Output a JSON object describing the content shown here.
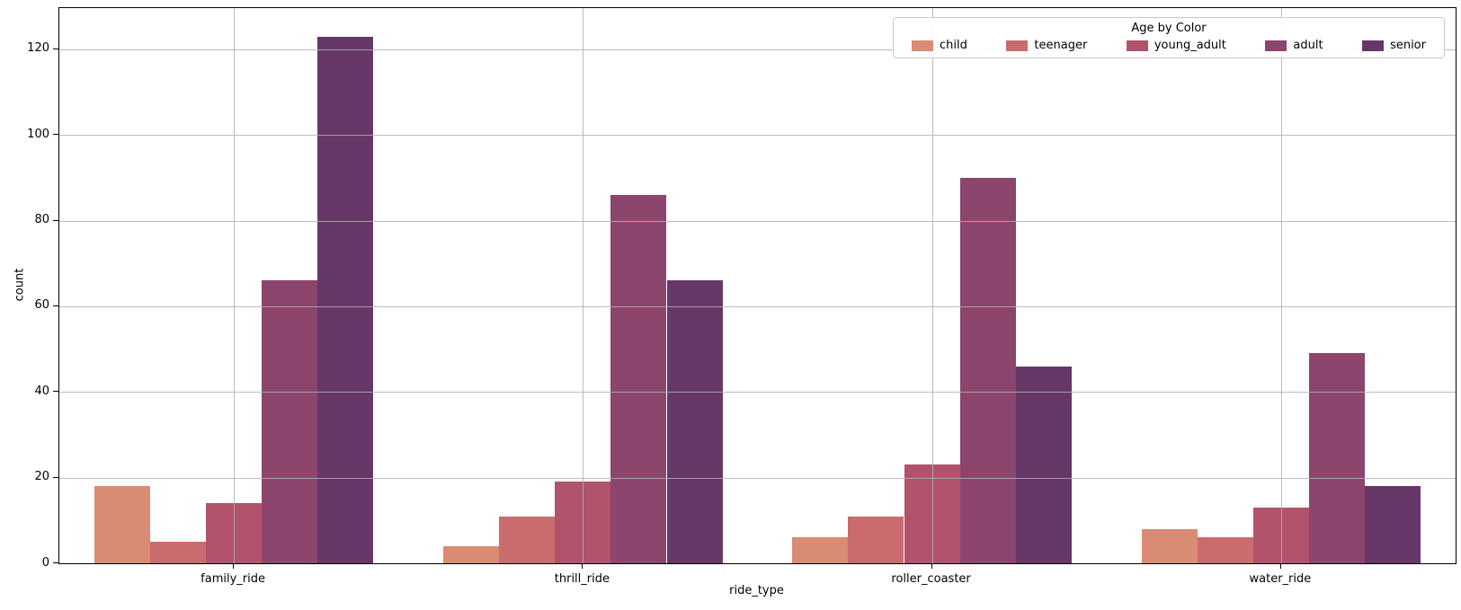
{
  "chart_data": {
    "type": "bar",
    "title": "",
    "xlabel": "ride_type",
    "ylabel": "count",
    "categories": [
      "family_ride",
      "thrill_ride",
      "roller_coaster",
      "water_ride"
    ],
    "series": [
      {
        "name": "child",
        "color": "#d98b74",
        "values": [
          18,
          4,
          6,
          8
        ]
      },
      {
        "name": "teenager",
        "color": "#ca6b6d",
        "values": [
          5,
          11,
          11,
          6
        ]
      },
      {
        "name": "young_adult",
        "color": "#b1536b",
        "values": [
          14,
          19,
          23,
          13
        ]
      },
      {
        "name": "adult",
        "color": "#8c456c",
        "values": [
          66,
          86,
          90,
          49
        ]
      },
      {
        "name": "senior",
        "color": "#673768",
        "values": [
          123,
          66,
          46,
          18
        ]
      }
    ],
    "yticks": [
      0,
      20,
      40,
      60,
      80,
      100,
      120
    ],
    "ylim": [
      0,
      129.6
    ],
    "grid": true,
    "grid_above_bars": true,
    "legend_title": "Age by Color",
    "legend_position": "upper right"
  }
}
